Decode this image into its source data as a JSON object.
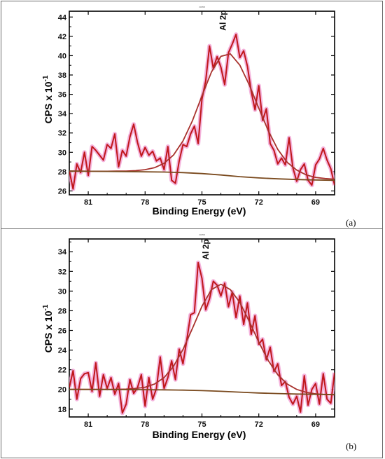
{
  "chart_data": [
    {
      "id": "a",
      "type": "line",
      "panel_label": "(a)",
      "tiny_header": "ʌʀʙʙ",
      "xlabel": "Binding Energy (eV)",
      "ylabel": "CPS x 10",
      "ylabel_sup": "-1",
      "xlim": [
        82.0,
        68.0
      ],
      "ylim": [
        25.6,
        44.6
      ],
      "xticks": [
        81,
        78,
        75,
        72,
        69
      ],
      "yticks": [
        26,
        28,
        30,
        32,
        34,
        36,
        38,
        40,
        42,
        44
      ],
      "peak_label": "Al 2p",
      "peak_position": [
        73.9,
        42.3
      ],
      "series": [
        {
          "role": "raw",
          "color": "#c0171b",
          "x": [
            82.0,
            81.8,
            81.6,
            81.4,
            81.2,
            81.0,
            80.8,
            80.6,
            80.4,
            80.2,
            80.0,
            79.8,
            79.6,
            79.4,
            79.2,
            79.0,
            78.8,
            78.6,
            78.4,
            78.2,
            78.0,
            77.8,
            77.6,
            77.4,
            77.2,
            77.0,
            76.8,
            76.6,
            76.4,
            76.2,
            76.0,
            75.8,
            75.6,
            75.4,
            75.2,
            75.0,
            74.8,
            74.6,
            74.4,
            74.2,
            74.0,
            73.8,
            73.6,
            73.4,
            73.2,
            73.0,
            72.8,
            72.6,
            72.4,
            72.2,
            72.0,
            71.8,
            71.6,
            71.4,
            71.2,
            71.0,
            70.8,
            70.6,
            70.4,
            70.2,
            70.0,
            69.8,
            69.6,
            69.4,
            69.2,
            69.0,
            68.8,
            68.6,
            68.4,
            68.2,
            68.0
          ],
          "y": [
            28.1,
            26.2,
            28.8,
            27.9,
            30.0,
            27.6,
            30.6,
            30.2,
            29.7,
            29.2,
            30.8,
            30.4,
            31.9,
            28.5,
            30.2,
            29.6,
            31.6,
            32.9,
            31.0,
            29.6,
            30.5,
            29.7,
            30.1,
            29.1,
            29.4,
            28.2,
            30.6,
            27.1,
            26.8,
            29.1,
            30.8,
            30.6,
            31.9,
            32.7,
            30.9,
            35.5,
            37.4,
            41.0,
            38.7,
            39.9,
            38.8,
            37.0,
            40.3,
            41.2,
            42.2,
            39.8,
            40.5,
            38.9,
            36.3,
            34.4,
            36.9,
            33.3,
            34.5,
            30.9,
            30.2,
            28.8,
            29.4,
            28.7,
            31.5,
            28.4,
            27.0,
            28.2,
            28.8,
            27.1,
            26.6,
            28.7,
            29.3,
            30.4,
            29.2,
            28.3,
            26.6
          ]
        },
        {
          "role": "fit",
          "color": "#a8322d",
          "x": [
            82.0,
            81.5,
            81.0,
            80.5,
            80.0,
            79.5,
            79.0,
            78.5,
            78.0,
            77.5,
            77.0,
            76.5,
            76.0,
            75.5,
            75.0,
            74.5,
            74.0,
            73.5,
            73.0,
            72.5,
            72.0,
            71.5,
            71.0,
            70.5,
            70.0,
            69.5,
            69.0,
            68.5,
            68.0
          ],
          "y": [
            28.05,
            28.05,
            28.04,
            28.04,
            28.04,
            28.05,
            28.06,
            28.1,
            28.2,
            28.41,
            28.86,
            29.72,
            31.18,
            33.28,
            35.84,
            38.3,
            39.93,
            40.18,
            39.02,
            36.96,
            34.56,
            32.22,
            30.3,
            28.96,
            28.16,
            27.66,
            27.4,
            27.28,
            27.21
          ]
        },
        {
          "role": "background",
          "color": "#7a4a1e",
          "x": [
            82.0,
            80.0,
            78.0,
            77.0,
            76.0,
            75.0,
            74.0,
            73.0,
            72.0,
            71.0,
            70.0,
            69.0,
            68.0
          ],
          "y": [
            28.05,
            28.02,
            27.98,
            27.96,
            27.9,
            27.8,
            27.65,
            27.48,
            27.35,
            27.25,
            27.18,
            27.14,
            27.1
          ]
        }
      ]
    },
    {
      "id": "b",
      "type": "line",
      "panel_label": "(b)",
      "tiny_header": "ʌʀʙʙ",
      "xlabel": "Binding Energy (eV)",
      "ylabel": "CPS x 10",
      "ylabel_sup": "-1",
      "xlim": [
        82.0,
        68.0
      ],
      "ylim": [
        17.2,
        35.3
      ],
      "xticks": [
        81,
        78,
        75,
        72,
        69
      ],
      "yticks": [
        18,
        20,
        22,
        24,
        26,
        28,
        30,
        32,
        34
      ],
      "peak_label": "Al 2p",
      "peak_position": [
        74.8,
        32.9
      ],
      "series": [
        {
          "role": "raw",
          "color": "#c0171b",
          "x": [
            82.0,
            81.8,
            81.6,
            81.4,
            81.2,
            81.0,
            80.8,
            80.6,
            80.4,
            80.2,
            80.0,
            79.8,
            79.6,
            79.4,
            79.2,
            79.0,
            78.8,
            78.6,
            78.4,
            78.2,
            78.0,
            77.8,
            77.6,
            77.4,
            77.2,
            77.0,
            76.8,
            76.6,
            76.4,
            76.2,
            76.0,
            75.8,
            75.6,
            75.4,
            75.2,
            75.0,
            74.8,
            74.6,
            74.4,
            74.2,
            74.0,
            73.8,
            73.6,
            73.4,
            73.2,
            73.0,
            72.8,
            72.6,
            72.4,
            72.2,
            72.0,
            71.8,
            71.6,
            71.4,
            71.2,
            71.0,
            70.8,
            70.6,
            70.4,
            70.2,
            70.0,
            69.8,
            69.6,
            69.4,
            69.2,
            69.0,
            68.8,
            68.6,
            68.4,
            68.2,
            68.0
          ],
          "y": [
            20.2,
            21.9,
            19.0,
            21.1,
            21.6,
            21.7,
            19.8,
            22.7,
            19.3,
            21.5,
            20.1,
            21.2,
            19.5,
            20.6,
            17.6,
            18.5,
            21.0,
            19.6,
            20.2,
            21.5,
            18.3,
            21.2,
            19.0,
            20.1,
            23.3,
            20.1,
            21.2,
            22.9,
            21.0,
            24.1,
            22.6,
            25.0,
            27.6,
            27.8,
            32.9,
            31.3,
            28.1,
            29.2,
            31.0,
            30.6,
            29.5,
            30.8,
            28.4,
            29.9,
            27.3,
            29.5,
            26.6,
            28.8,
            25.6,
            27.5,
            24.6,
            25.1,
            23.0,
            24.3,
            21.8,
            22.6,
            20.4,
            20.8,
            19.2,
            18.5,
            19.3,
            17.7,
            21.4,
            18.4,
            20.0,
            20.6,
            18.5,
            21.6,
            19.0,
            18.6,
            21.7
          ]
        },
        {
          "role": "fit",
          "color": "#a8322d",
          "x": [
            82.0,
            81.5,
            81.0,
            80.5,
            80.0,
            79.5,
            79.0,
            78.5,
            78.0,
            77.5,
            77.0,
            76.5,
            76.0,
            75.5,
            75.0,
            74.5,
            74.0,
            73.5,
            73.0,
            72.5,
            72.0,
            71.5,
            71.0,
            70.5,
            70.0,
            69.5,
            69.0,
            68.5,
            68.0
          ],
          "y": [
            20.0,
            20.0,
            20.0,
            20.0,
            20.0,
            20.01,
            20.03,
            20.09,
            20.22,
            20.55,
            21.2,
            22.35,
            24.06,
            26.22,
            28.45,
            30.15,
            30.7,
            30.15,
            28.85,
            26.9,
            24.8,
            22.93,
            21.5,
            20.55,
            20.0,
            19.7,
            19.55,
            19.48,
            19.45
          ]
        },
        {
          "role": "background",
          "color": "#7a4a1e",
          "x": [
            82.0,
            80.0,
            78.0,
            77.0,
            76.0,
            75.0,
            74.0,
            73.0,
            72.0,
            71.0,
            70.0,
            69.0,
            68.0
          ],
          "y": [
            20.0,
            19.99,
            19.97,
            19.96,
            19.93,
            19.88,
            19.81,
            19.72,
            19.64,
            19.58,
            19.53,
            19.5,
            19.48
          ]
        }
      ]
    }
  ]
}
